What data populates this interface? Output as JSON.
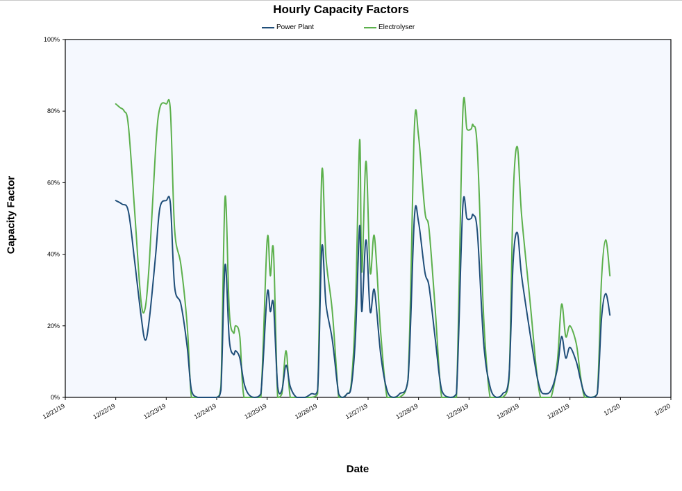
{
  "chart_data": {
    "type": "line",
    "title": "Hourly Capacity Factors",
    "xlabel": "Date",
    "ylabel": "Capacity Factor",
    "x_ticks": [
      "12/21/19",
      "12/22/19",
      "12/23/19",
      "12/24/19",
      "12/25/19",
      "12/26/19",
      "12/27/19",
      "12/28/19",
      "12/29/19",
      "12/30/19",
      "12/31/19",
      "1/1/20",
      "1/2/20"
    ],
    "y_ticks": [
      "0%",
      "20%",
      "40%",
      "60%",
      "80%",
      "100%"
    ],
    "ylim": [
      0,
      100
    ],
    "xlim": [
      "12/21/19",
      "1/2/20"
    ],
    "grid": false,
    "legend": "top",
    "series": [
      {
        "name": "Power Plant",
        "color": "#1f4e79",
        "points": [
          [
            "12/22/19 00:00",
            55
          ],
          [
            "12/22/19 03:00",
            54
          ],
          [
            "12/22/19 06:00",
            52
          ],
          [
            "12/22/19 09:00",
            38
          ],
          [
            "12/22/19 12:00",
            23
          ],
          [
            "12/22/19 14:00",
            16
          ],
          [
            "12/22/19 16:00",
            22
          ],
          [
            "12/22/19 19:00",
            40
          ],
          [
            "12/22/19 21:00",
            53
          ],
          [
            "12/23/19 00:00",
            55
          ],
          [
            "12/23/19 02:00",
            54
          ],
          [
            "12/23/19 04:00",
            31
          ],
          [
            "12/23/19 07:00",
            26
          ],
          [
            "12/23/19 10:00",
            14
          ],
          [
            "12/23/19 12:00",
            2
          ],
          [
            "12/23/19 15:00",
            0
          ],
          [
            "12/23/19 18:00",
            0
          ],
          [
            "12/24/19 00:00",
            0
          ],
          [
            "12/24/19 02:00",
            2
          ],
          [
            "12/24/19 04:00",
            37
          ],
          [
            "12/24/19 06:00",
            16
          ],
          [
            "12/24/19 08:00",
            12
          ],
          [
            "12/24/19 09:00",
            13
          ],
          [
            "12/24/19 11:00",
            11
          ],
          [
            "12/24/19 13:00",
            4
          ],
          [
            "12/24/19 15:00",
            1
          ],
          [
            "12/24/19 18:00",
            0
          ],
          [
            "12/24/19 21:00",
            1
          ],
          [
            "12/25/19 00:00",
            29
          ],
          [
            "12/25/19 01:30",
            24
          ],
          [
            "12/25/19 03:00",
            26
          ],
          [
            "12/25/19 05:00",
            3
          ],
          [
            "12/25/19 07:00",
            2
          ],
          [
            "12/25/19 09:00",
            9
          ],
          [
            "12/25/19 11:00",
            3
          ],
          [
            "12/25/19 14:00",
            0
          ],
          [
            "12/25/19 18:00",
            0
          ],
          [
            "12/25/19 21:00",
            1
          ],
          [
            "12/26/19 00:00",
            2
          ],
          [
            "12/26/19 02:00",
            42
          ],
          [
            "12/26/19 04:00",
            26
          ],
          [
            "12/26/19 07:00",
            16
          ],
          [
            "12/26/19 10:00",
            1
          ],
          [
            "12/26/19 12:00",
            0
          ],
          [
            "12/26/19 14:00",
            1
          ],
          [
            "12/26/19 16:00",
            3
          ],
          [
            "12/26/19 18:00",
            17
          ],
          [
            "12/26/19 20:00",
            48
          ],
          [
            "12/26/19 21:00",
            24
          ],
          [
            "12/26/19 23:00",
            44
          ],
          [
            "12/27/19 01:00",
            24
          ],
          [
            "12/27/19 03:00",
            30
          ],
          [
            "12/27/19 06:00",
            12
          ],
          [
            "12/27/19 09:00",
            2
          ],
          [
            "12/27/19 12:00",
            0
          ],
          [
            "12/27/19 15:00",
            1
          ],
          [
            "12/27/19 19:00",
            5
          ],
          [
            "12/27/19 22:00",
            50
          ],
          [
            "12/28/19 00:00",
            49
          ],
          [
            "12/28/19 03:00",
            35
          ],
          [
            "12/28/19 05:00",
            31
          ],
          [
            "12/28/19 08:00",
            16
          ],
          [
            "12/28/19 11:00",
            2
          ],
          [
            "12/28/19 15:00",
            0
          ],
          [
            "12/28/19 18:00",
            1
          ],
          [
            "12/28/19 21:00",
            53
          ],
          [
            "12/28/19 23:00",
            50
          ],
          [
            "12/29/19 01:00",
            50
          ],
          [
            "12/29/19 02:00",
            51
          ],
          [
            "12/29/19 04:00",
            46
          ],
          [
            "12/29/19 07:00",
            15
          ],
          [
            "12/29/19 10:00",
            3
          ],
          [
            "12/29/19 13:00",
            0
          ],
          [
            "12/29/19 16:00",
            1
          ],
          [
            "12/29/19 19:00",
            6
          ],
          [
            "12/29/19 21:00",
            38
          ],
          [
            "12/29/19 23:00",
            46
          ],
          [
            "12/30/19 01:00",
            34
          ],
          [
            "12/30/19 05:00",
            18
          ],
          [
            "12/30/19 08:00",
            7
          ],
          [
            "12/30/19 10:00",
            2
          ],
          [
            "12/30/19 12:00",
            1
          ],
          [
            "12/30/19 15:00",
            2
          ],
          [
            "12/30/19 18:00",
            8
          ],
          [
            "12/30/19 20:00",
            17
          ],
          [
            "12/30/19 22:00",
            11
          ],
          [
            "12/31/19 00:00",
            14
          ],
          [
            "12/31/19 03:00",
            10
          ],
          [
            "12/31/19 05:00",
            5
          ],
          [
            "12/31/19 07:00",
            1
          ],
          [
            "12/31/19 10:00",
            0
          ],
          [
            "12/31/19 13:00",
            1
          ],
          [
            "12/31/19 15:00",
            22
          ],
          [
            "12/31/19 17:00",
            29
          ],
          [
            "12/31/19 19:00",
            23
          ]
        ]
      },
      {
        "name": "Electrolyser",
        "color": "#5cb04c",
        "points": [
          [
            "12/22/19 00:00",
            82
          ],
          [
            "12/22/19 02:00",
            81
          ],
          [
            "12/22/19 04:00",
            80
          ],
          [
            "12/22/19 06:00",
            76
          ],
          [
            "12/22/19 09:00",
            52
          ],
          [
            "12/22/19 12:00",
            27
          ],
          [
            "12/22/19 14:00",
            25
          ],
          [
            "12/22/19 16:00",
            38
          ],
          [
            "12/22/19 19:00",
            70
          ],
          [
            "12/22/19 21:00",
            81
          ],
          [
            "12/23/19 00:00",
            82
          ],
          [
            "12/23/19 02:00",
            80
          ],
          [
            "12/23/19 04:00",
            47
          ],
          [
            "12/23/19 07:00",
            37
          ],
          [
            "12/23/19 10:00",
            20
          ],
          [
            "12/23/19 12:00",
            0
          ],
          [
            "12/23/19 15:00",
            0
          ],
          [
            "12/23/19 18:00",
            0
          ],
          [
            "12/24/19 00:00",
            0
          ],
          [
            "12/24/19 02:00",
            3
          ],
          [
            "12/24/19 04:00",
            56
          ],
          [
            "12/24/19 06:00",
            24
          ],
          [
            "12/24/19 08:00",
            18
          ],
          [
            "12/24/19 09:00",
            20
          ],
          [
            "12/24/19 11:00",
            17
          ],
          [
            "12/24/19 13:00",
            0
          ],
          [
            "12/24/19 18:00",
            0
          ],
          [
            "12/24/19 21:00",
            0
          ],
          [
            "12/25/19 00:00",
            44
          ],
          [
            "12/25/19 01:30",
            34
          ],
          [
            "12/25/19 03:00",
            41
          ],
          [
            "12/25/19 05:00",
            0
          ],
          [
            "12/25/19 07:00",
            1
          ],
          [
            "12/25/19 09:00",
            13
          ],
          [
            "12/25/19 11:00",
            0
          ],
          [
            "12/25/19 14:00",
            0
          ],
          [
            "12/25/19 18:00",
            0
          ],
          [
            "12/25/19 21:00",
            0
          ],
          [
            "12/26/19 00:00",
            1
          ],
          [
            "12/26/19 02:00",
            63
          ],
          [
            "12/26/19 04:00",
            39
          ],
          [
            "12/26/19 07:00",
            24
          ],
          [
            "12/26/19 10:00",
            0
          ],
          [
            "12/26/19 12:00",
            0
          ],
          [
            "12/26/19 14:00",
            1
          ],
          [
            "12/26/19 16:00",
            4
          ],
          [
            "12/26/19 18:00",
            25
          ],
          [
            "12/26/19 20:00",
            72
          ],
          [
            "12/26/19 21:00",
            35
          ],
          [
            "12/26/19 23:00",
            66
          ],
          [
            "12/27/19 01:00",
            35
          ],
          [
            "12/27/19 03:00",
            45
          ],
          [
            "12/27/19 06:00",
            18
          ],
          [
            "12/27/19 09:00",
            0
          ],
          [
            "12/27/19 12:00",
            0
          ],
          [
            "12/27/19 15:00",
            0
          ],
          [
            "12/27/19 19:00",
            5
          ],
          [
            "12/27/19 22:00",
            75
          ],
          [
            "12/28/19 00:00",
            73
          ],
          [
            "12/28/19 03:00",
            52
          ],
          [
            "12/28/19 05:00",
            47
          ],
          [
            "12/28/19 08:00",
            24
          ],
          [
            "12/28/19 11:00",
            0
          ],
          [
            "12/28/19 15:00",
            0
          ],
          [
            "12/28/19 18:00",
            0
          ],
          [
            "12/28/19 21:00",
            79
          ],
          [
            "12/28/19 23:00",
            75
          ],
          [
            "12/29/19 01:00",
            75
          ],
          [
            "12/29/19 02:00",
            76
          ],
          [
            "12/29/19 04:00",
            69
          ],
          [
            "12/29/19 07:00",
            22
          ],
          [
            "12/29/19 10:00",
            0
          ],
          [
            "12/29/19 13:00",
            0
          ],
          [
            "12/29/19 16:00",
            0
          ],
          [
            "12/29/19 19:00",
            5
          ],
          [
            "12/29/19 21:00",
            56
          ],
          [
            "12/29/19 23:00",
            70
          ],
          [
            "12/30/19 01:00",
            51
          ],
          [
            "12/30/19 05:00",
            27
          ],
          [
            "12/30/19 08:00",
            8
          ],
          [
            "12/30/19 10:00",
            0
          ],
          [
            "12/30/19 12:00",
            0
          ],
          [
            "12/30/19 15:00",
            0
          ],
          [
            "12/30/19 18:00",
            10
          ],
          [
            "12/30/19 20:00",
            26
          ],
          [
            "12/30/19 22:00",
            17
          ],
          [
            "12/31/19 00:00",
            20
          ],
          [
            "12/31/19 03:00",
            15
          ],
          [
            "12/31/19 05:00",
            6
          ],
          [
            "12/31/19 07:00",
            0
          ],
          [
            "12/31/19 10:00",
            0
          ],
          [
            "12/31/19 13:00",
            1
          ],
          [
            "12/31/19 15:00",
            33
          ],
          [
            "12/31/19 17:00",
            44
          ],
          [
            "12/31/19 19:00",
            34
          ]
        ]
      }
    ]
  }
}
